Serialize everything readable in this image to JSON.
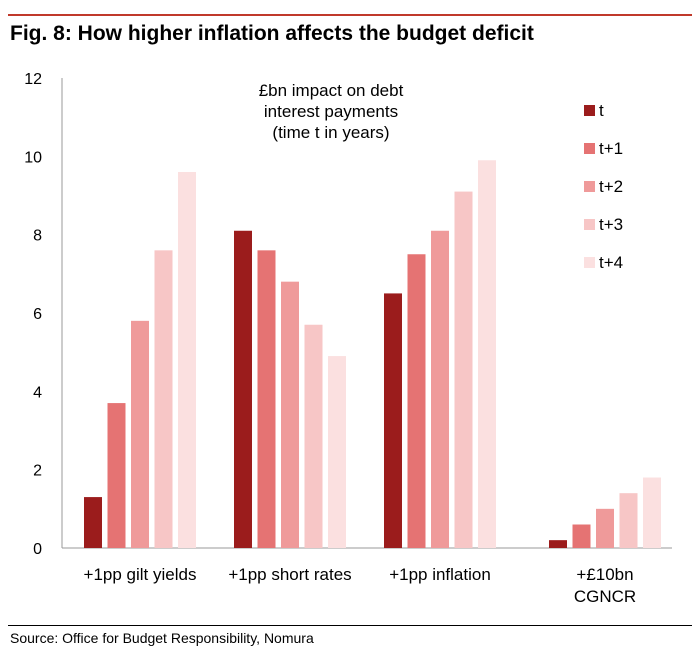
{
  "figure": {
    "title": "Fig. 8: How higher inflation affects the budget deficit",
    "source": "Source: Office for Budget Responsibility, Nomura"
  },
  "chart_data": {
    "type": "bar",
    "title": "Fig. 8: How higher inflation affects the budget deficit",
    "annotation": [
      "£bn impact on debt",
      "interest payments",
      "(time t in years)"
    ],
    "categories": [
      [
        "+1pp gilt yields"
      ],
      [
        "+1pp short rates"
      ],
      [
        "+1pp inflation"
      ],
      [
        "+£10bn",
        "CGNCR"
      ]
    ],
    "series": [
      {
        "name": "t",
        "color": "#9b1c1c",
        "values": [
          1.3,
          8.1,
          6.5,
          0.2
        ]
      },
      {
        "name": "t+1",
        "color": "#e57373",
        "values": [
          3.7,
          7.6,
          7.5,
          0.6
        ]
      },
      {
        "name": "t+2",
        "color": "#ef9a9a",
        "values": [
          5.8,
          6.8,
          8.1,
          1.0
        ]
      },
      {
        "name": "t+3",
        "color": "#f7c6c6",
        "values": [
          7.6,
          5.7,
          9.1,
          1.4
        ]
      },
      {
        "name": "t+4",
        "color": "#fbe0e0",
        "values": [
          9.6,
          4.9,
          9.9,
          1.8
        ]
      }
    ],
    "yticks": [
      0,
      2,
      4,
      6,
      8,
      10,
      12
    ],
    "ylim": [
      0,
      12
    ],
    "xlabel": "",
    "ylabel": "",
    "legend_position": "top-right",
    "grid": false
  }
}
